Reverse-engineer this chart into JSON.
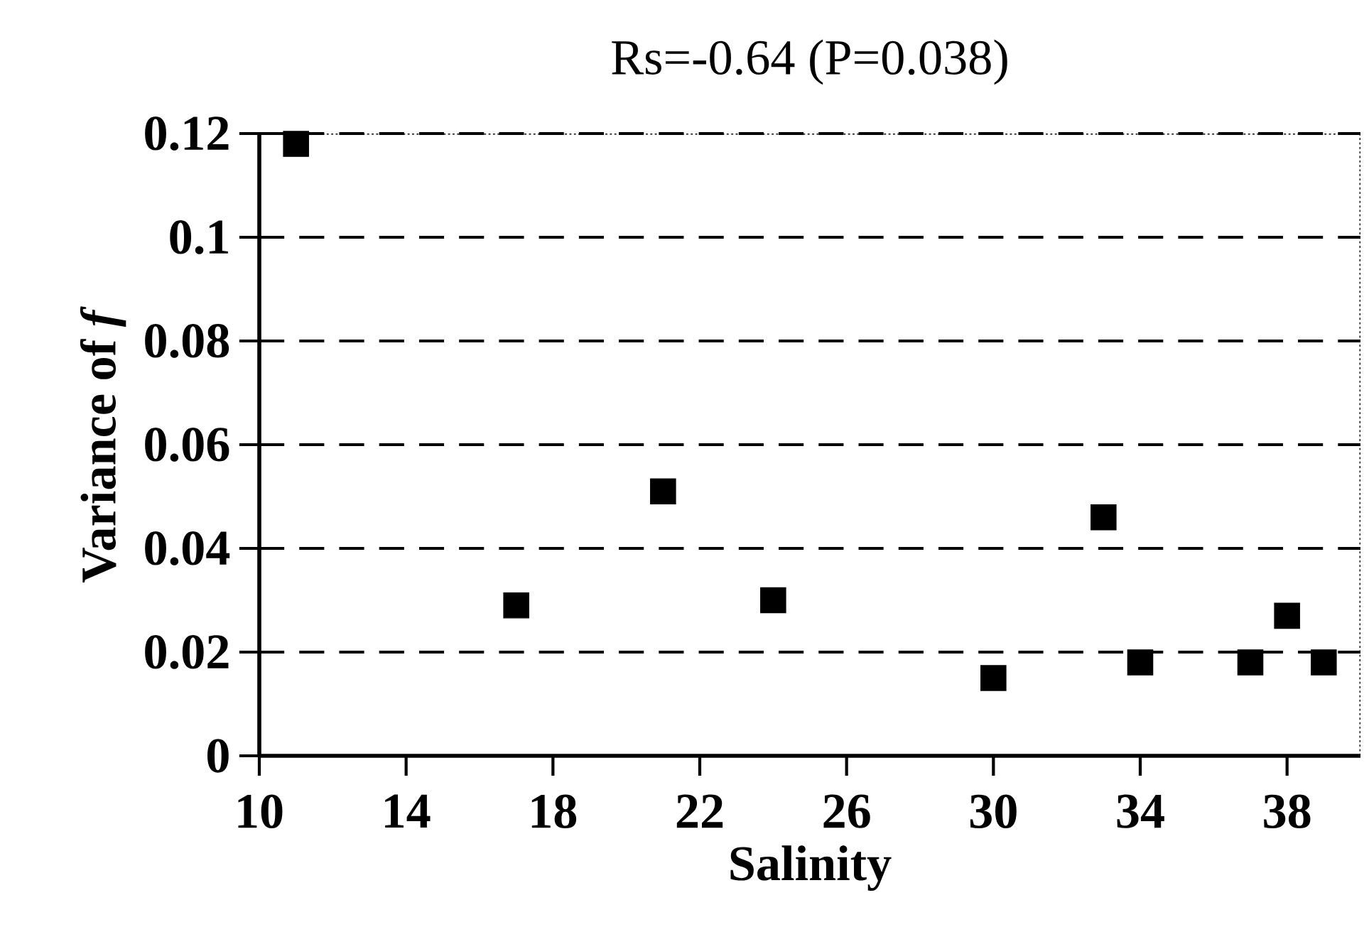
{
  "chart_data": {
    "type": "scatter",
    "title": "Rs=-0.64 (P=0.038)",
    "xlabel": "Salinity",
    "ylabel": "Variance of *f*",
    "x": [
      11,
      17,
      21,
      24,
      30,
      33,
      34,
      37,
      38,
      39
    ],
    "series": [
      {
        "color": "#000000",
        "values": [
          0.118,
          0.029,
          0.051,
          0.03,
          0.015,
          0.046,
          0.018,
          0.018,
          0.027,
          0.018
        ]
      }
    ],
    "xlim": [
      10,
      40
    ],
    "xticks": [
      10,
      14,
      18,
      22,
      26,
      30,
      34,
      38
    ],
    "ylim": [
      0,
      0.12
    ],
    "yticks": [
      0,
      0.02,
      0.04,
      0.06,
      0.08,
      0.1,
      0.12
    ],
    "grid": "y",
    "marker": "square"
  }
}
